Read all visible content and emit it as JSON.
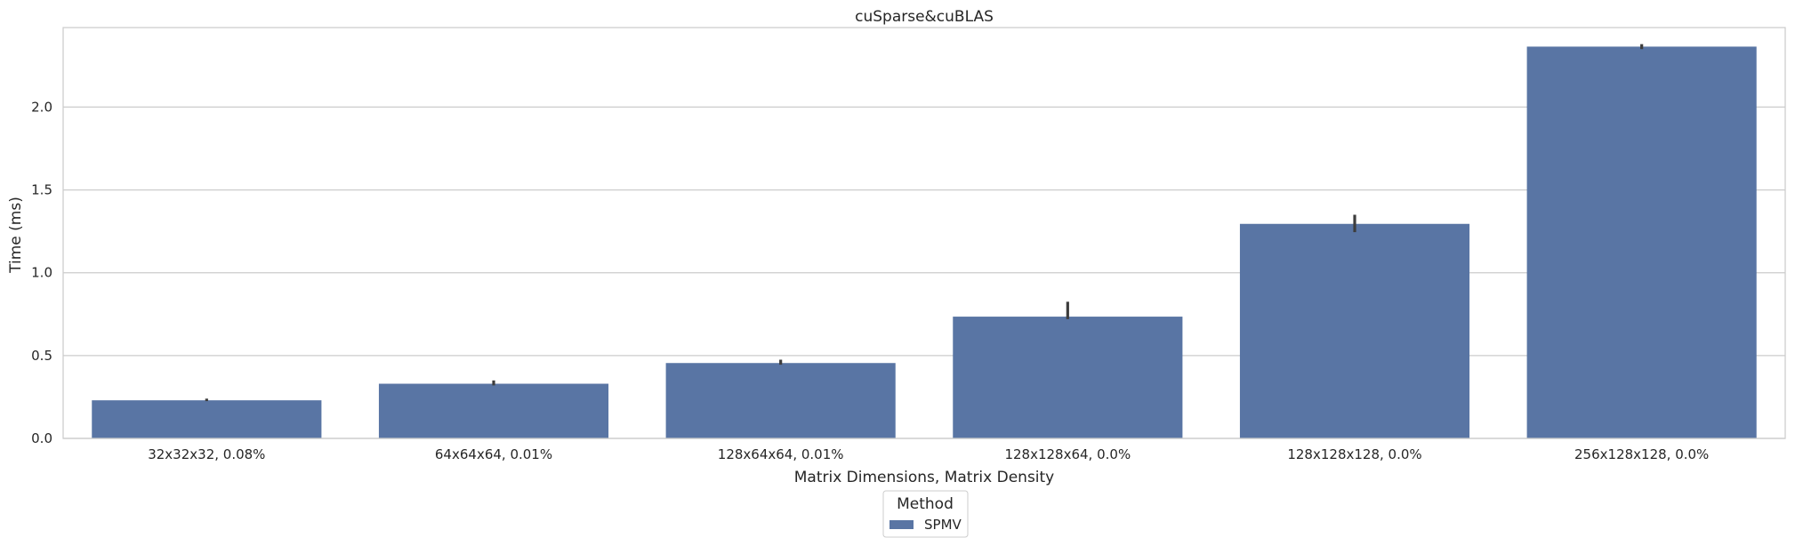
{
  "chart_data": {
    "type": "bar",
    "title": "cuSparse&cuBLAS",
    "xlabel": "Matrix Dimensions, Matrix Density",
    "ylabel": "Time (ms)",
    "categories": [
      "32x32x32, 0.08%",
      "64x64x64, 0.01%",
      "128x64x64, 0.01%",
      "128x128x64, 0.0%",
      "128x128x128, 0.0%",
      "256x128x128, 0.0%"
    ],
    "series": [
      {
        "name": "SPMV",
        "color": "#5975a4",
        "values": [
          0.23,
          0.33,
          0.455,
          0.735,
          1.295,
          2.365
        ],
        "error_low": [
          0.225,
          0.32,
          0.445,
          0.72,
          1.245,
          2.35
        ],
        "error_high": [
          0.24,
          0.35,
          0.475,
          0.825,
          1.35,
          2.38
        ]
      }
    ],
    "ylim": [
      0,
      2.48
    ],
    "yticks": [
      "0.0",
      "0.5",
      "1.0",
      "1.5",
      "2.0"
    ],
    "grid": "horizontal",
    "legend": {
      "title": "Method",
      "placement": "bottom-center"
    }
  }
}
